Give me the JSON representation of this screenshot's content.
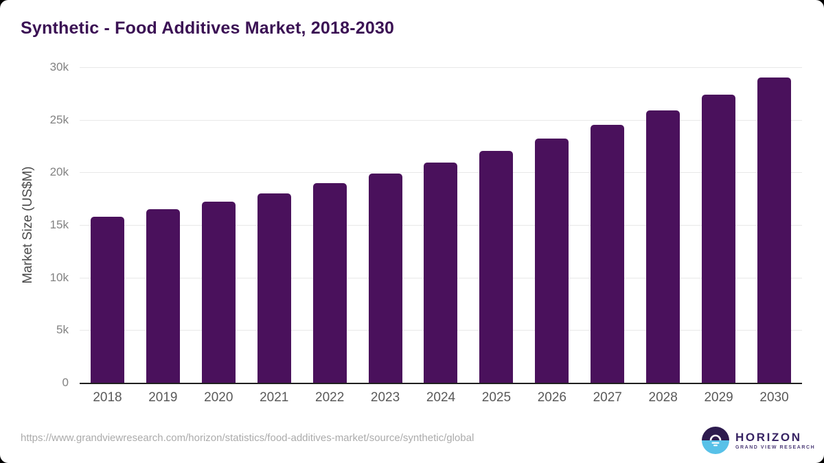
{
  "chart_data": {
    "type": "bar",
    "title": "Synthetic - Food Additives Market, 2018-2030",
    "categories": [
      "2018",
      "2019",
      "2020",
      "2021",
      "2022",
      "2023",
      "2024",
      "2025",
      "2026",
      "2027",
      "2028",
      "2029",
      "2030"
    ],
    "values": [
      15800,
      16500,
      17200,
      18000,
      18950,
      19900,
      20950,
      22050,
      23200,
      24500,
      25900,
      27400,
      29000
    ],
    "xlabel": "",
    "ylabel": "Market Size (US$M)",
    "ylim": [
      0,
      30000
    ],
    "yticks": [
      {
        "label": "30k",
        "value": 30000
      },
      {
        "label": "25k",
        "value": 25000
      },
      {
        "label": "20k",
        "value": 20000
      },
      {
        "label": "15k",
        "value": 15000
      },
      {
        "label": "10k",
        "value": 10000
      },
      {
        "label": "5k",
        "value": 5000
      },
      {
        "label": "0",
        "value": 0
      }
    ],
    "grid": true,
    "legend": false,
    "bar_color": "#4a115c"
  },
  "colors": {
    "title": "#3b1254",
    "bar": "#4a115c",
    "gridline": "#e8e8e8",
    "axis_line": "#1f1f1f",
    "logo_dark": "#2d1b4e",
    "logo_blue": "#58c1e8"
  },
  "footer": {
    "source_url": "https://www.grandviewresearch.com/horizon/statistics/food-additives-market/source/synthetic/global",
    "logo": {
      "name": "HORIZON",
      "tagline": "GRAND VIEW RESEARCH"
    }
  }
}
